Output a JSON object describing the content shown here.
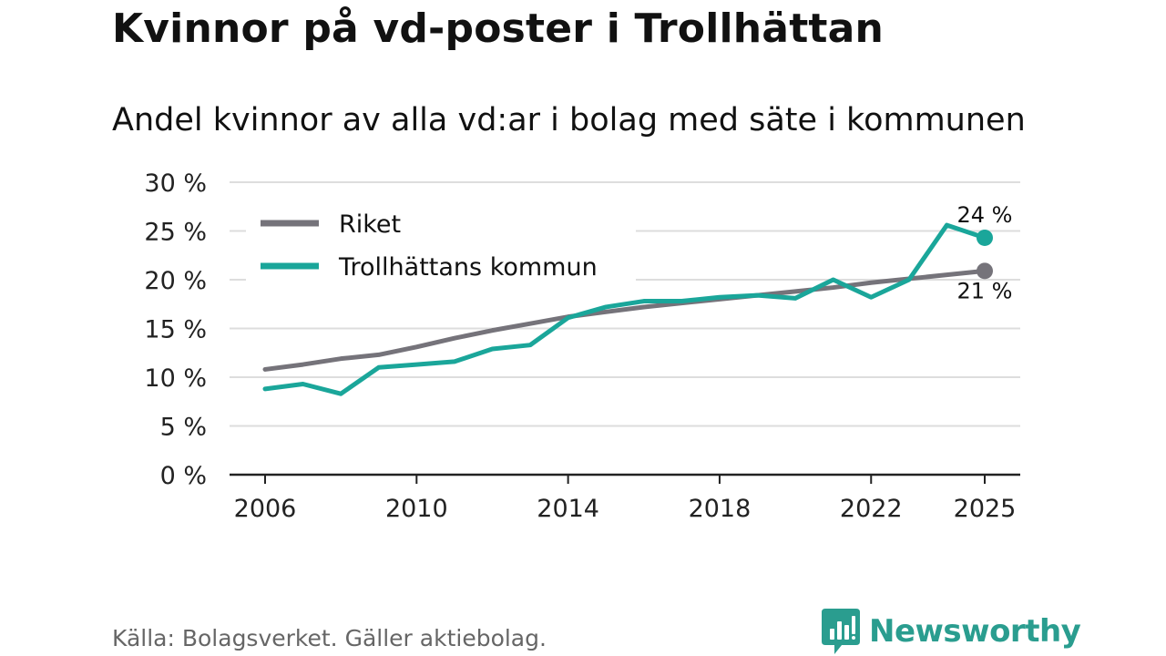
{
  "title": "Kvinnor på vd-poster i Trollhättan",
  "subtitle": "Andel kvinnor av alla vd:ar i bolag med säte i kommunen",
  "source": "Källa: Bolagsverket. Gäller aktiebolag.",
  "brand": {
    "name": "Newsworthy",
    "icon": "newsworthy-logo-icon"
  },
  "colors": {
    "riket": "#75737a",
    "trollhattan": "#1aa69a",
    "grid": "#dddddd",
    "axis": "#222222"
  },
  "chart_data": {
    "type": "line",
    "title": "Kvinnor på vd-poster i Trollhättan",
    "xlabel": "",
    "ylabel": "",
    "x": [
      2006,
      2007,
      2008,
      2009,
      2010,
      2011,
      2012,
      2013,
      2014,
      2015,
      2016,
      2017,
      2018,
      2019,
      2020,
      2021,
      2022,
      2023,
      2024,
      2025
    ],
    "x_ticks": [
      2006,
      2010,
      2014,
      2018,
      2022,
      2025
    ],
    "x_tick_labels": [
      "2006",
      "2010",
      "2014",
      "2018",
      "2022",
      "2025"
    ],
    "ylim": [
      0,
      30
    ],
    "y_ticks": [
      0,
      5,
      10,
      15,
      20,
      25,
      30
    ],
    "y_tick_labels": [
      "0 %",
      "5 %",
      "10 %",
      "15 %",
      "20 %",
      "25 %",
      "30 %"
    ],
    "grid": true,
    "legend_position": "top-left",
    "series": [
      {
        "name": "Riket",
        "color": "#75737a",
        "values": [
          10.8,
          11.3,
          11.9,
          12.3,
          13.1,
          14.0,
          14.8,
          15.5,
          16.2,
          16.7,
          17.2,
          17.6,
          18.0,
          18.4,
          18.8,
          19.2,
          19.7,
          20.1,
          20.5,
          20.9
        ],
        "end_label": "21 %"
      },
      {
        "name": "Trollhättans kommun",
        "color": "#1aa69a",
        "values": [
          8.8,
          9.3,
          8.3,
          11.0,
          11.3,
          11.6,
          12.9,
          13.3,
          16.1,
          17.2,
          17.8,
          17.8,
          18.2,
          18.4,
          18.1,
          20.0,
          18.2,
          20.0,
          25.6,
          24.3
        ],
        "end_label": "24 %"
      }
    ]
  }
}
